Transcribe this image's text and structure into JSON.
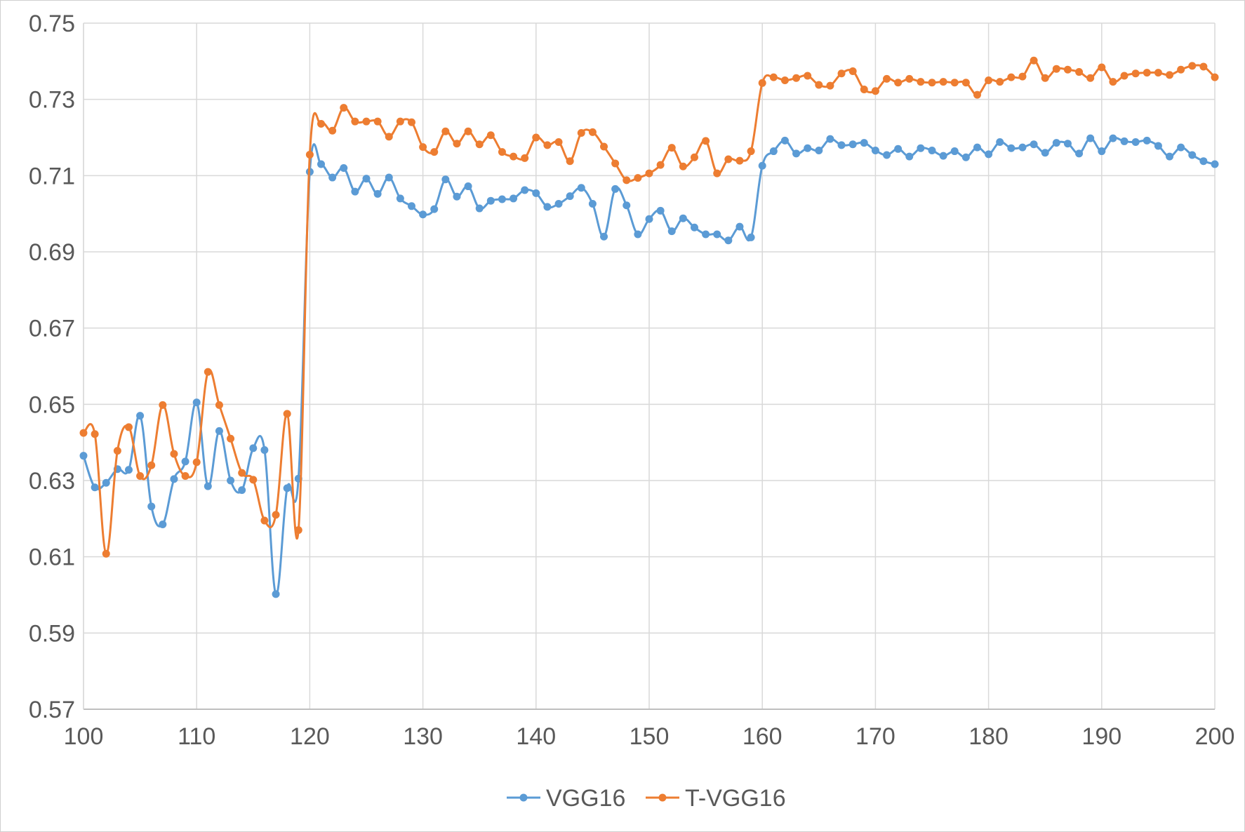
{
  "chart_data": {
    "type": "line",
    "xlim": [
      100,
      200
    ],
    "ylim": [
      0.57,
      0.75
    ],
    "x_ticks": [
      "100",
      "110",
      "120",
      "130",
      "140",
      "150",
      "160",
      "170",
      "180",
      "190",
      "200"
    ],
    "y_ticks": [
      "0.57",
      "0.59",
      "0.61",
      "0.63",
      "0.65",
      "0.67",
      "0.69",
      "0.71",
      "0.73",
      "0.75"
    ],
    "grid": true,
    "legend_position": "bottom",
    "series": [
      {
        "name": "VGG16",
        "color": "#5b9bd5",
        "x_start": 100,
        "x_step": 1,
        "values": [
          0.6365,
          0.6282,
          0.6294,
          0.633,
          0.6328,
          0.647,
          0.6232,
          0.6185,
          0.6304,
          0.635,
          0.6505,
          0.6285,
          0.643,
          0.63,
          0.6275,
          0.6385,
          0.638,
          0.6002,
          0.628,
          0.6305,
          0.711,
          0.713,
          0.7095,
          0.712,
          0.7058,
          0.7092,
          0.7052,
          0.7095,
          0.704,
          0.702,
          0.6998,
          0.7012,
          0.709,
          0.7045,
          0.7072,
          0.7014,
          0.7034,
          0.7038,
          0.704,
          0.7062,
          0.7054,
          0.7018,
          0.7026,
          0.7046,
          0.7068,
          0.7026,
          0.694,
          0.7065,
          0.7022,
          0.6946,
          0.6986,
          0.7008,
          0.6954,
          0.6988,
          0.6964,
          0.6946,
          0.6946,
          0.693,
          0.6966,
          0.6938,
          0.7126,
          0.7164,
          0.7192,
          0.7158,
          0.7172,
          0.7166,
          0.7196,
          0.718,
          0.7182,
          0.7186,
          0.7166,
          0.7154,
          0.717,
          0.715,
          0.7172,
          0.7166,
          0.7152,
          0.7164,
          0.7148,
          0.7174,
          0.7156,
          0.7188,
          0.7172,
          0.7174,
          0.7182,
          0.716,
          0.7186,
          0.7184,
          0.7158,
          0.7198,
          0.7164,
          0.7198,
          0.719,
          0.7188,
          0.7192,
          0.7178,
          0.715,
          0.7174,
          0.7154,
          0.7138,
          0.713
        ]
      },
      {
        "name": "T-VGG16",
        "color": "#ed7d31",
        "x_start": 100,
        "x_step": 1,
        "values": [
          0.6425,
          0.6422,
          0.6108,
          0.6378,
          0.644,
          0.6312,
          0.634,
          0.6498,
          0.637,
          0.6312,
          0.6348,
          0.6585,
          0.6498,
          0.641,
          0.632,
          0.6302,
          0.6195,
          0.621,
          0.6475,
          0.617,
          0.7155,
          0.7236,
          0.7218,
          0.7278,
          0.7242,
          0.7242,
          0.7242,
          0.7202,
          0.7242,
          0.724,
          0.7175,
          0.7162,
          0.7216,
          0.7184,
          0.7216,
          0.7182,
          0.7206,
          0.7162,
          0.715,
          0.7146,
          0.72,
          0.718,
          0.7188,
          0.7138,
          0.7212,
          0.7214,
          0.7176,
          0.7132,
          0.7088,
          0.7094,
          0.7106,
          0.7128,
          0.7173,
          0.7124,
          0.7148,
          0.7191,
          0.7106,
          0.7143,
          0.7139,
          0.7164,
          0.7343,
          0.7358,
          0.735,
          0.7356,
          0.7362,
          0.7338,
          0.7336,
          0.7368,
          0.7374,
          0.7326,
          0.7322,
          0.7354,
          0.7344,
          0.7354,
          0.7346,
          0.7344,
          0.7346,
          0.7344,
          0.7344,
          0.7312,
          0.735,
          0.7346,
          0.7358,
          0.736,
          0.7402,
          0.7356,
          0.738,
          0.7378,
          0.7372,
          0.7356,
          0.7384,
          0.7346,
          0.7362,
          0.7368,
          0.737,
          0.737,
          0.7364,
          0.7378,
          0.7388,
          0.7386,
          0.7358
        ]
      }
    ]
  }
}
